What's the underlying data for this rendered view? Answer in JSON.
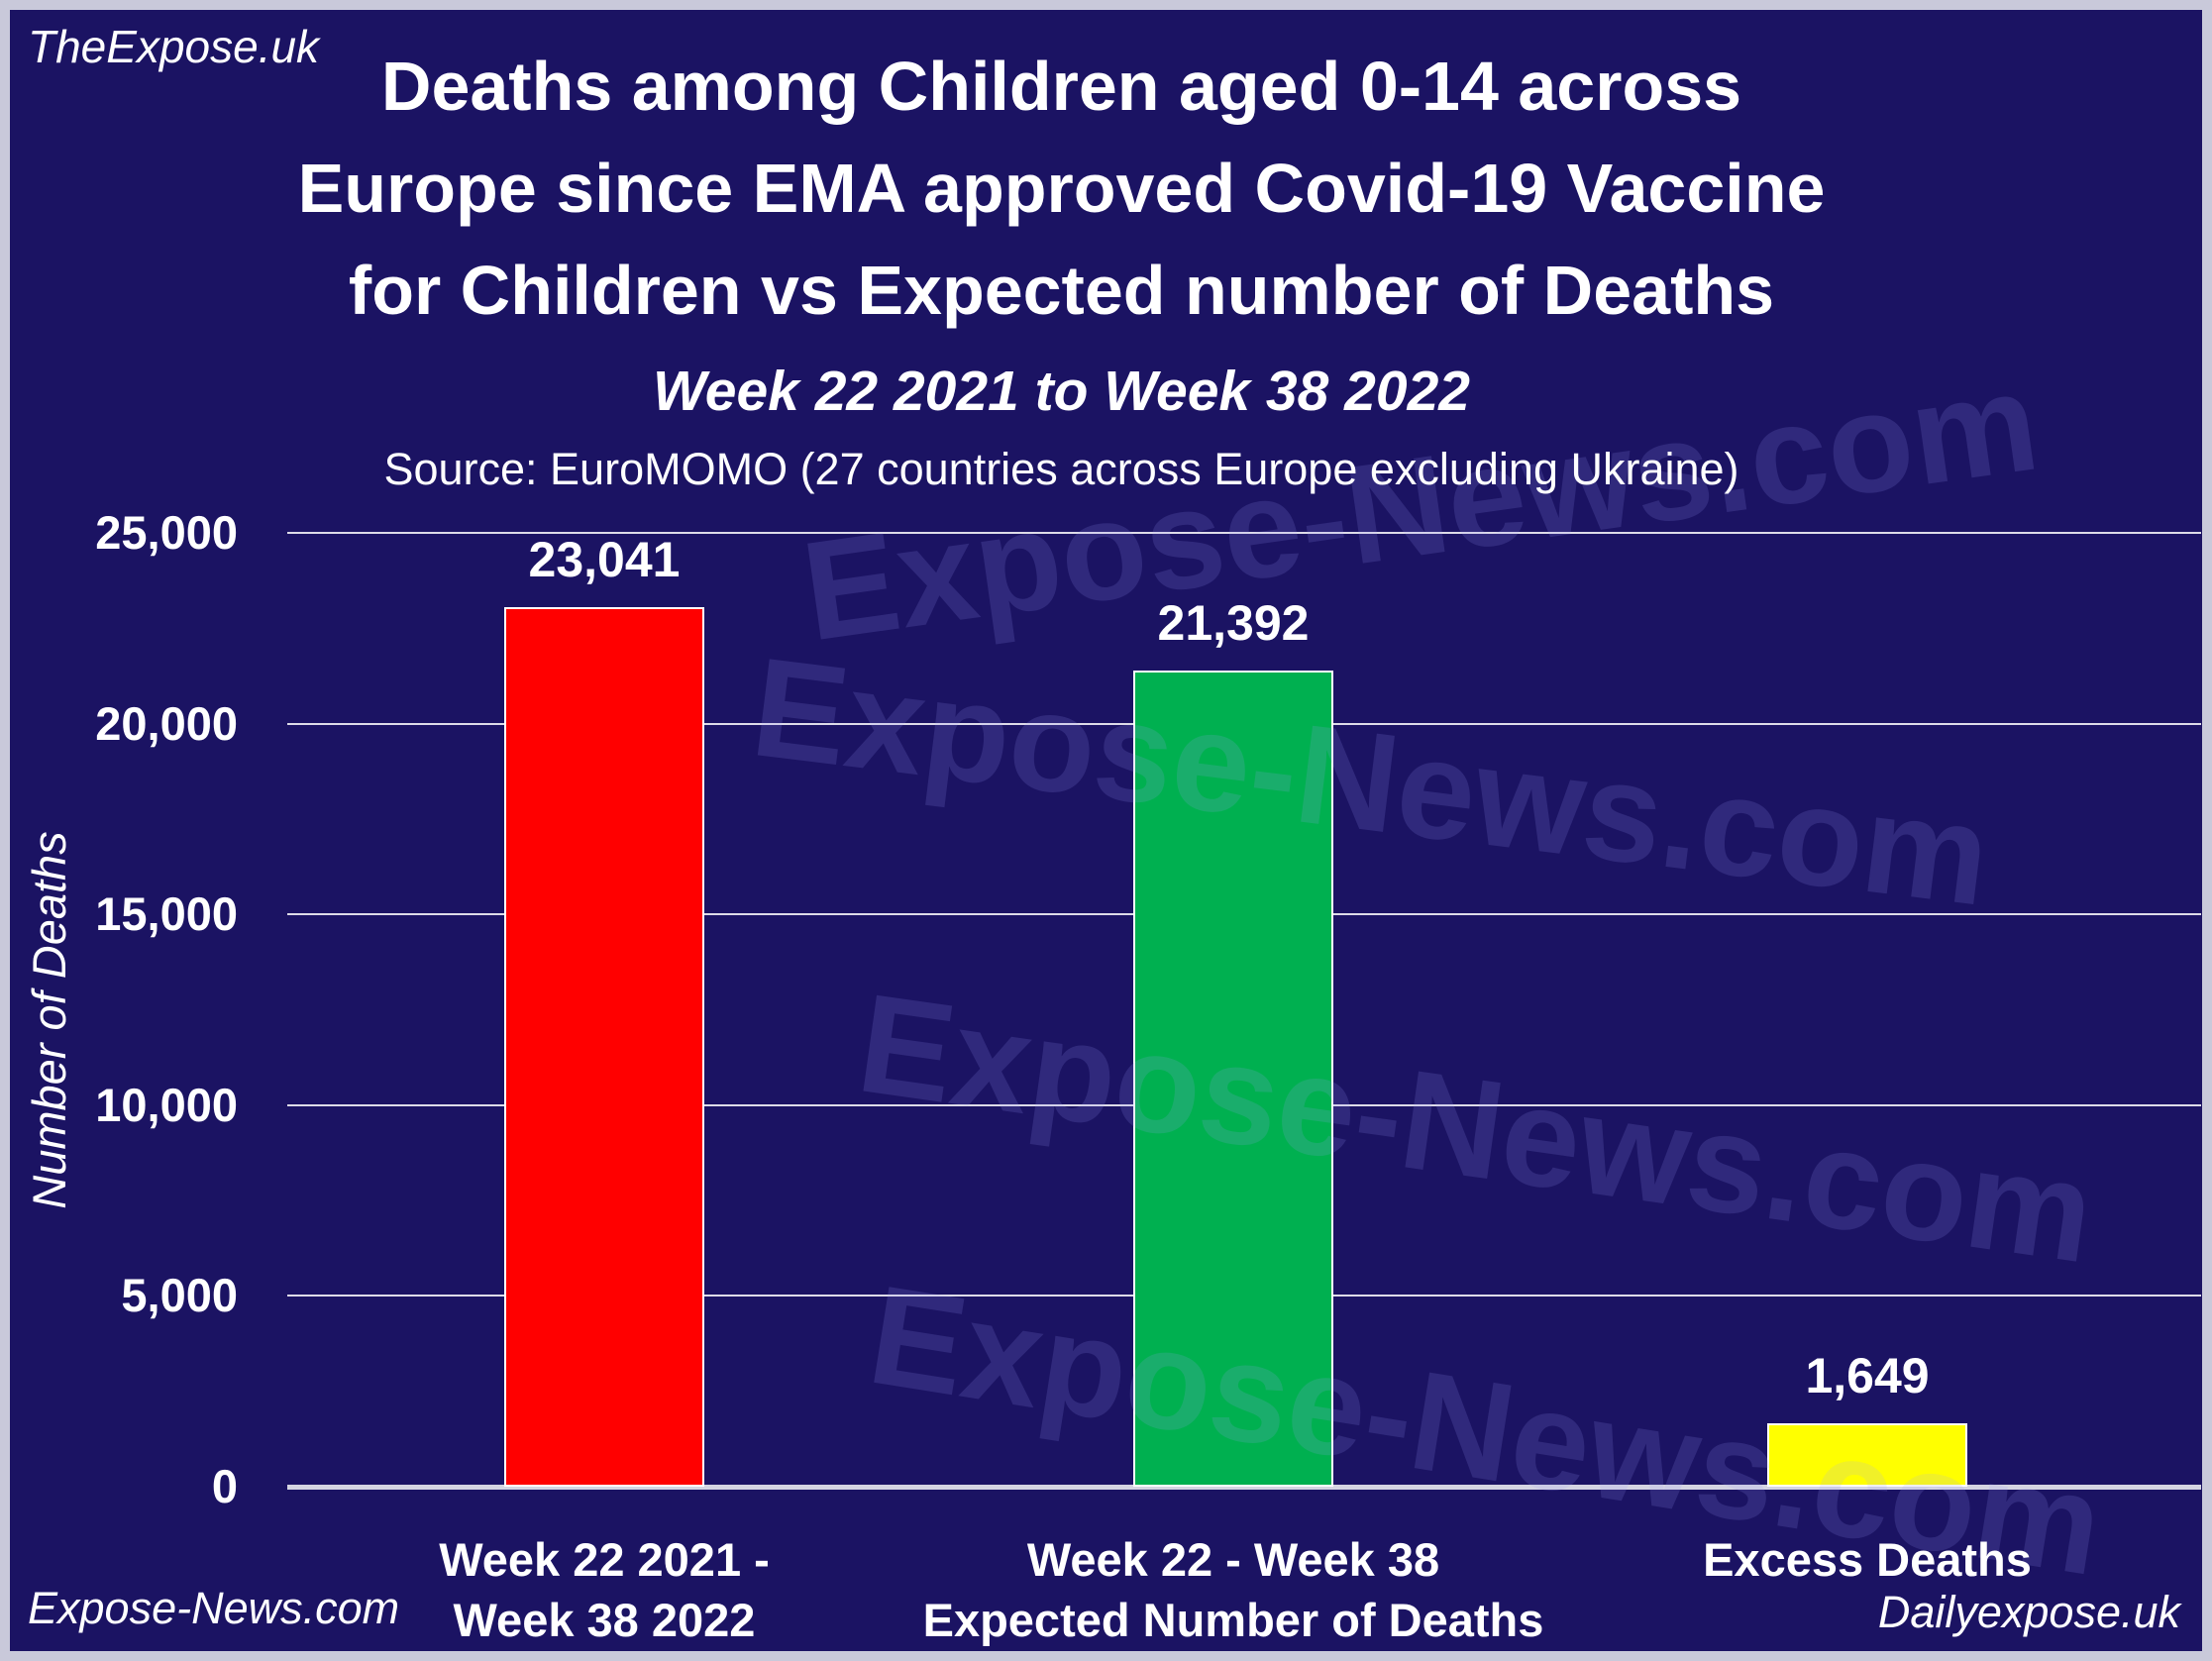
{
  "branding": {
    "top_left": "TheExpose.uk",
    "bottom_left": "Expose-News.com",
    "bottom_right": "Dailyexpose.uk",
    "watermark": "Expose-News.com"
  },
  "title_lines": [
    "Deaths among Children aged 0-14 across",
    "Europe since EMA approved Covid-19 Vaccine",
    "for Children vs Expected number of Deaths"
  ],
  "subtitle": "Week 22 2021 to Week 38 2022",
  "source": "Source: EuroMOMO (27 countries across Europe excluding Ukraine)",
  "chart_data": {
    "type": "bar",
    "title": "Deaths among Children aged 0-14 across Europe since EMA approved Covid-19 Vaccine for Children vs Expected number of Deaths",
    "subtitle": "Week 22 2021 to Week 38 2022",
    "source": "Source: EuroMOMO (27 countries across Europe excluding Ukraine)",
    "xlabel": "",
    "ylabel": "Number of Deaths",
    "ylim": [
      0,
      25000
    ],
    "ytick_interval": 5000,
    "yticks": [
      "25,000",
      "20,000",
      "15,000",
      "10,000",
      "5,000",
      "0"
    ],
    "grid": true,
    "legend": false,
    "categories": [
      "Week 22 2021 - Week 38 2022",
      "Week 22 - Week 38 Expected Number of Deaths",
      "Excess Deaths"
    ],
    "category_lines": [
      [
        "Week 22 2021 -",
        "Week 38 2022"
      ],
      [
        "Week 22 - Week 38",
        "Expected Number of Deaths"
      ],
      [
        "Excess Deaths"
      ]
    ],
    "values": [
      23041,
      21392,
      1649
    ],
    "value_labels": [
      "23,041",
      "21,392",
      "1,649"
    ],
    "bar_colors": [
      "#FF0000",
      "#00B050",
      "#FFFF00"
    ]
  },
  "colors": {
    "background": "#1b1363",
    "frame_border": "#c9c9da",
    "text": "#ffffff",
    "gridline": "#ffffff",
    "axis_line": "#d5d5e2",
    "bar_red": "#FF0000",
    "bar_green": "#00B050",
    "bar_yellow": "#FFFF00"
  }
}
